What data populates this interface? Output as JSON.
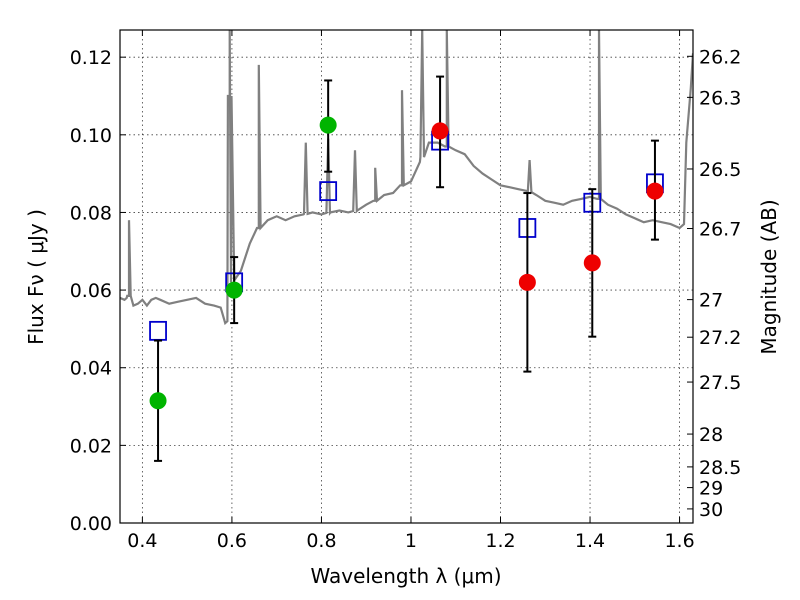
{
  "chart_data": {
    "type": "scatter",
    "xlabel": "Wavelength  λ (μm)",
    "ylabel_left": "Flux  Fν  ( μJy )",
    "ylabel_right": "Magnitude (AB)",
    "xlim": [
      0.35,
      1.63
    ],
    "ylim": [
      0.0,
      0.127
    ],
    "grid": true,
    "x_ticks": [
      {
        "value": 0.4,
        "label": "0.4"
      },
      {
        "value": 0.6,
        "label": "0.6"
      },
      {
        "value": 0.8,
        "label": "0.8"
      },
      {
        "value": 1.0,
        "label": "1"
      },
      {
        "value": 1.2,
        "label": "1.2"
      },
      {
        "value": 1.4,
        "label": "1.4"
      },
      {
        "value": 1.6,
        "label": "1.6"
      }
    ],
    "y_ticks": [
      {
        "value": 0.0,
        "label": "0.00"
      },
      {
        "value": 0.02,
        "label": "0.02"
      },
      {
        "value": 0.04,
        "label": "0.04"
      },
      {
        "value": 0.06,
        "label": "0.06"
      },
      {
        "value": 0.08,
        "label": "0.08"
      },
      {
        "value": 0.1,
        "label": "0.10"
      },
      {
        "value": 0.12,
        "label": "0.12"
      }
    ],
    "y2_ticks": [
      {
        "value": 26.2,
        "label": "26.2"
      },
      {
        "value": 26.3,
        "label": "26.3"
      },
      {
        "value": 26.5,
        "label": "26.5"
      },
      {
        "value": 26.7,
        "label": "26.7"
      },
      {
        "value": 27.0,
        "label": "27"
      },
      {
        "value": 27.2,
        "label": "27.2"
      },
      {
        "value": 27.5,
        "label": "27.5"
      },
      {
        "value": 28.0,
        "label": "28"
      },
      {
        "value": 28.5,
        "label": "28.5"
      },
      {
        "value": 29.0,
        "label": "29"
      },
      {
        "value": 30.0,
        "label": "30"
      }
    ],
    "series": [
      {
        "kind": "spectrum",
        "color": "#808080",
        "points": [
          [
            0.35,
            0.058
          ],
          [
            0.36,
            0.0575
          ],
          [
            0.365,
            0.058
          ],
          [
            0.37,
            0.0585
          ],
          [
            0.38,
            0.056
          ],
          [
            0.39,
            0.0565
          ],
          [
            0.4,
            0.0575
          ],
          [
            0.41,
            0.056
          ],
          [
            0.42,
            0.0575
          ],
          [
            0.43,
            0.058
          ],
          [
            0.44,
            0.0575
          ],
          [
            0.46,
            0.0565
          ],
          [
            0.48,
            0.057
          ],
          [
            0.5,
            0.0575
          ],
          [
            0.52,
            0.058
          ],
          [
            0.54,
            0.0565
          ],
          [
            0.56,
            0.056
          ],
          [
            0.575,
            0.0555
          ],
          [
            0.585,
            0.0515
          ],
          [
            0.59,
            0.052
          ],
          [
            0.595,
            0.11
          ],
          [
            0.598,
            0.062
          ],
          [
            0.605,
            0.0625
          ],
          [
            0.62,
            0.065
          ],
          [
            0.64,
            0.072
          ],
          [
            0.66,
            0.076
          ],
          [
            0.68,
            0.078
          ],
          [
            0.7,
            0.079
          ],
          [
            0.72,
            0.078
          ],
          [
            0.74,
            0.079
          ],
          [
            0.76,
            0.0795
          ],
          [
            0.78,
            0.08
          ],
          [
            0.8,
            0.0795
          ],
          [
            0.82,
            0.08
          ],
          [
            0.84,
            0.0805
          ],
          [
            0.86,
            0.08
          ],
          [
            0.88,
            0.0805
          ],
          [
            0.9,
            0.082
          ],
          [
            0.92,
            0.083
          ],
          [
            0.94,
            0.0845
          ],
          [
            0.96,
            0.085
          ],
          [
            0.98,
            0.087
          ],
          [
            1.0,
            0.088
          ],
          [
            1.02,
            0.093
          ],
          [
            1.04,
            0.098
          ],
          [
            1.06,
            0.098
          ],
          [
            1.08,
            0.097
          ],
          [
            1.1,
            0.096
          ],
          [
            1.12,
            0.095
          ],
          [
            1.14,
            0.092
          ],
          [
            1.16,
            0.09
          ],
          [
            1.18,
            0.0885
          ],
          [
            1.2,
            0.087
          ],
          [
            1.22,
            0.0865
          ],
          [
            1.24,
            0.086
          ],
          [
            1.26,
            0.0855
          ],
          [
            1.28,
            0.0845
          ],
          [
            1.3,
            0.083
          ],
          [
            1.32,
            0.0825
          ],
          [
            1.34,
            0.082
          ],
          [
            1.36,
            0.083
          ],
          [
            1.38,
            0.0835
          ],
          [
            1.4,
            0.084
          ],
          [
            1.42,
            0.0835
          ],
          [
            1.44,
            0.082
          ],
          [
            1.46,
            0.081
          ],
          [
            1.48,
            0.0795
          ],
          [
            1.5,
            0.0785
          ],
          [
            1.52,
            0.0775
          ],
          [
            1.54,
            0.078
          ],
          [
            1.56,
            0.0775
          ],
          [
            1.58,
            0.077
          ],
          [
            1.6,
            0.076
          ],
          [
            1.61,
            0.077
          ],
          [
            1.615,
            0.098
          ],
          [
            1.625,
            0.112
          ],
          [
            1.63,
            0.121
          ]
        ],
        "emission_lines": [
          {
            "x": 0.37,
            "peak": 0.078
          },
          {
            "x": 0.595,
            "peak": 0.127
          },
          {
            "x": 0.66,
            "peak": 0.118
          },
          {
            "x": 0.765,
            "peak": 0.098
          },
          {
            "x": 0.815,
            "peak": 0.099
          },
          {
            "x": 0.875,
            "peak": 0.096
          },
          {
            "x": 0.92,
            "peak": 0.0915
          },
          {
            "x": 0.98,
            "peak": 0.1115
          },
          {
            "x": 1.025,
            "peak": 0.127
          },
          {
            "x": 1.08,
            "peak": 0.127
          },
          {
            "x": 1.265,
            "peak": 0.0935
          },
          {
            "x": 1.42,
            "peak": 0.127
          }
        ]
      },
      {
        "kind": "model-photometry",
        "marker": "open-square",
        "color": "#0000cc",
        "points": [
          {
            "x": 0.435,
            "y": 0.0495
          },
          {
            "x": 0.605,
            "y": 0.062
          },
          {
            "x": 0.815,
            "y": 0.0855
          },
          {
            "x": 1.065,
            "y": 0.0985
          },
          {
            "x": 1.26,
            "y": 0.076
          },
          {
            "x": 1.405,
            "y": 0.0825
          },
          {
            "x": 1.545,
            "y": 0.0875
          }
        ]
      },
      {
        "kind": "optical-measurements",
        "marker": "filled-circle",
        "color": "#00b400",
        "points": [
          {
            "x": 0.435,
            "y": 0.0315,
            "err_low": 0.0155,
            "err_high": 0.0155
          },
          {
            "x": 0.605,
            "y": 0.06,
            "err_low": 0.0085,
            "err_high": 0.0085
          },
          {
            "x": 0.815,
            "y": 0.1025,
            "err_low": 0.012,
            "err_high": 0.0115
          }
        ]
      },
      {
        "kind": "nir-measurements",
        "marker": "filled-circle",
        "color": "#ee0000",
        "points": [
          {
            "x": 1.065,
            "y": 0.101,
            "err_low": 0.0145,
            "err_high": 0.014
          },
          {
            "x": 1.26,
            "y": 0.062,
            "err_low": 0.023,
            "err_high": 0.023
          },
          {
            "x": 1.405,
            "y": 0.067,
            "err_low": 0.019,
            "err_high": 0.019
          },
          {
            "x": 1.545,
            "y": 0.0855,
            "err_low": 0.0125,
            "err_high": 0.013
          }
        ]
      }
    ]
  }
}
